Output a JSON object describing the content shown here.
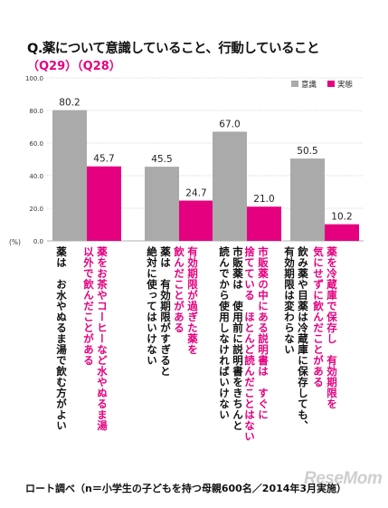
{
  "header": {
    "title": "Q.薬について意識していること、行動していること",
    "subtitle": "（Q29）（Q28）"
  },
  "footer": {
    "source": "ロート調べ（n＝小学生の子どもを持つ母親600名／2014年3月実施）"
  },
  "watermark": "ReseMom",
  "chart_data": {
    "type": "bar",
    "ylim": [
      0,
      100
    ],
    "yticks": [
      "100.0",
      "80.0",
      "60.0",
      "40.0",
      "20.0",
      "0.0"
    ],
    "yunit": "(%)",
    "grid": true,
    "legend_position": "top-right",
    "series": [
      {
        "name": "意識",
        "color": "#aaaaaa"
      },
      {
        "name": "実態",
        "color": "#e4007f"
      }
    ],
    "groups": [
      {
        "values": [
          80.2,
          45.7
        ],
        "labels": [
          "80.2",
          "45.7"
        ],
        "categories": [
          "薬は　お水やぬるま湯で飲む方がよい",
          "薬をお茶やコーヒーなど水やぬるま湯\n以外で飲んだことがある"
        ]
      },
      {
        "values": [
          45.5,
          24.7
        ],
        "labels": [
          "45.5",
          "24.7"
        ],
        "categories": [
          "薬は　有効期限がすぎると\n絶対に使ってはいけない",
          "有効期限が過ぎた薬を\n飲んだことがある"
        ]
      },
      {
        "values": [
          67.0,
          21.0
        ],
        "labels": [
          "67.0",
          "21.0"
        ],
        "categories": [
          "市販薬は　使用前に説明書をきちんと\n読んでから使用しなければいけない",
          "市販薬の中にある説明書は　すぐに\n捨てている　ほとんど読んだことはない"
        ]
      },
      {
        "values": [
          50.5,
          10.2
        ],
        "labels": [
          "50.5",
          "10.2"
        ],
        "categories": [
          "飲み薬や目薬は冷蔵庫に保存しても、\n有効期限は変わらない",
          "薬を冷蔵庫で保存し　有効期限を\n気にせずに飲んだことがある"
        ]
      }
    ]
  }
}
